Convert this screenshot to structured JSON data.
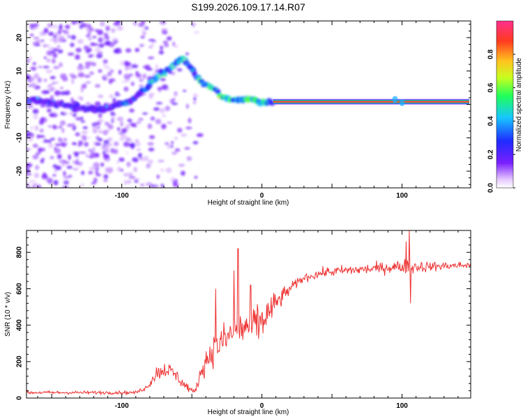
{
  "figure_title": "S199.2026.109.17.14.R07",
  "chart_data": [
    {
      "type": "heatmap",
      "xlabel": "Height of straight line (km)",
      "ylabel": "Frequency (Hz)",
      "xlim": [
        -168,
        149
      ],
      "ylim": [
        -25,
        25
      ],
      "xticks": [
        -100,
        0,
        100
      ],
      "xtick_labels": [
        "-100",
        "0",
        "100"
      ],
      "yticks": [
        -20,
        -10,
        0,
        10,
        20
      ],
      "ytick_labels": [
        "-20",
        "-10",
        "0",
        "10",
        "20"
      ],
      "colorbar": {
        "label": "Normalized spectral amplitude",
        "range": [
          0,
          1
        ],
        "ticks": [
          0,
          0.2,
          0.4,
          0.6,
          0.8
        ],
        "tick_labels": [
          "0.0",
          "0.2",
          "0.4",
          "0.6",
          "0.8"
        ],
        "colors": [
          "#ffffff",
          "#e6c8ff",
          "#7a1fff",
          "#1f2bff",
          "#17c6ff",
          "#1fff5a",
          "#c8ff1f",
          "#ffc31f",
          "#ff3a1f",
          "#ff2f8e"
        ]
      },
      "ridge": {
        "points": [
          [
            -168,
            1.5
          ],
          [
            -150,
            0.5
          ],
          [
            -130,
            -1.0
          ],
          [
            -115,
            -1.5
          ],
          [
            -105,
            -0.5
          ],
          [
            -95,
            1.0
          ],
          [
            -85,
            4.0
          ],
          [
            -75,
            8.0
          ],
          [
            -65,
            11.0
          ],
          [
            -57,
            14.0
          ],
          [
            -52,
            12.0
          ],
          [
            -46,
            8.0
          ],
          [
            -40,
            6.0
          ],
          [
            -33,
            4.0
          ],
          [
            -28,
            2.0
          ],
          [
            -20,
            1.0
          ],
          [
            -10,
            1.5
          ],
          [
            0,
            1.0
          ],
          [
            8,
            0.8
          ],
          [
            148,
            0.8
          ]
        ],
        "strong_from": 8,
        "strong_to": 148,
        "strong_freq": 0.8
      }
    },
    {
      "type": "line",
      "xlabel": "Height of straight line (km)",
      "ylabel": "SNR (10 * v/v)",
      "xlim": [
        -168,
        149
      ],
      "ylim": [
        0,
        920
      ],
      "xticks": [
        -100,
        0,
        100
      ],
      "xtick_labels": [
        "-100",
        "0",
        "100"
      ],
      "yticks": [
        0,
        200,
        400,
        600,
        800
      ],
      "ytick_labels": [
        "0",
        "200",
        "400",
        "600",
        "800"
      ],
      "color": "#ee3333",
      "envelope": {
        "x": [
          -168,
          -90,
          -82,
          -75,
          -68,
          -62,
          -55,
          -48,
          -42,
          -35,
          -25,
          -15,
          -5,
          0,
          10,
          20,
          30,
          45,
          60,
          80,
          95,
          100,
          105,
          115,
          130,
          149
        ],
        "y": [
          30,
          30,
          60,
          140,
          160,
          130,
          70,
          30,
          180,
          260,
          330,
          380,
          400,
          420,
          520,
          600,
          660,
          690,
          700,
          710,
          720,
          720,
          725,
          720,
          725,
          730
        ],
        "noise": [
          12,
          12,
          20,
          60,
          60,
          50,
          40,
          12,
          90,
          110,
          140,
          150,
          160,
          150,
          90,
          40,
          30,
          35,
          40,
          40,
          45,
          50,
          60,
          40,
          30,
          25
        ]
      },
      "spikes": [
        [
          -33,
          600
        ],
        [
          -20,
          700
        ],
        [
          -17,
          820
        ],
        [
          -8,
          620
        ],
        [
          103,
          860
        ],
        [
          105,
          920
        ],
        [
          106,
          520
        ]
      ]
    }
  ]
}
